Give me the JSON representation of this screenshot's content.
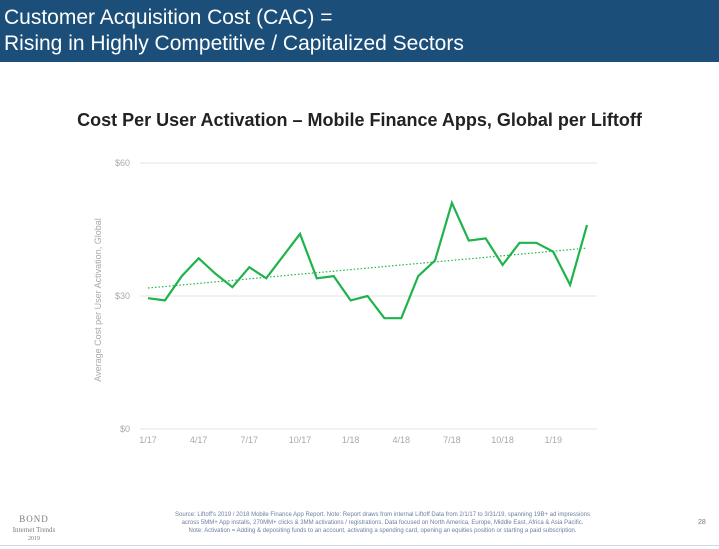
{
  "slide": {
    "header_line_1": "Customer Acquisition Cost (CAC) =",
    "header_line_2": "Rising in Highly Competitive / Capitalized Sectors",
    "header_color": "#1b4f7a",
    "footnote_line_1": "Source: Liftoff's 2019 / 2018 Mobile Finance App Report.  Note: Report draws from internal Liftoff Data from 2/1/17 to 3/31/19, spanning 19B+ ad impressions",
    "footnote_line_2": "across 5MM+ App installs, 270MM+ clicks & 3MM activations / registrations.  Data focused on North America, Europe, Middle East, Africa & Asia Pacific.",
    "footnote_line_3": "Note: Activation = Adding & depositing funds to an account, activating a spending card, opening an equities position or starting a paid subscription.",
    "brand_1": "BOND",
    "brand_2": "Internet Trends",
    "brand_3": "2019",
    "page_number": "28"
  },
  "chart_data": {
    "type": "line",
    "title": "Cost Per User Activation – Mobile Finance Apps, Global per Liftoff",
    "ylabel": "Average Cost per User Activation, Global",
    "xlabel": "",
    "ylim": [
      0,
      60
    ],
    "yticks": [
      0,
      30,
      60
    ],
    "ytick_labels": [
      "$0",
      "$30",
      "$60"
    ],
    "xticks": [
      "1/17",
      "4/17",
      "7/17",
      "10/17",
      "1/18",
      "4/18",
      "7/18",
      "10/18",
      "1/19"
    ],
    "x": [
      "1/17",
      "2/17",
      "3/17",
      "4/17",
      "5/17",
      "6/17",
      "7/17",
      "8/17",
      "9/17",
      "10/17",
      "11/17",
      "12/17",
      "1/18",
      "2/18",
      "3/18",
      "4/18",
      "5/18",
      "6/18",
      "7/18",
      "8/18",
      "9/18",
      "10/18",
      "11/18",
      "12/18",
      "1/19",
      "2/19",
      "3/19"
    ],
    "series": [
      {
        "values": [
          29.5,
          29,
          34.5,
          38.5,
          35,
          32,
          36.5,
          34,
          39,
          44,
          34,
          34.5,
          29,
          30,
          25,
          25,
          34.5,
          38,
          51,
          42.5,
          43,
          37,
          42,
          42,
          40,
          32.5,
          46
        ],
        "color": "#1fb34b"
      }
    ],
    "trendline": {
      "start": 31.8,
      "end": 40.8,
      "color": "#1fb34b",
      "style": "dotted"
    },
    "grid": true,
    "grid_color": "#e3e3e3"
  }
}
